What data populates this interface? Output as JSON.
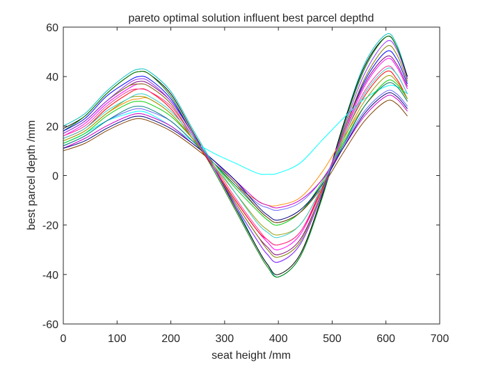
{
  "chart_data": {
    "type": "line",
    "title": "pareto optimal solution influent best parcel depthd",
    "xlabel": "seat height  /mm",
    "ylabel": "best parcel depth  /mm",
    "xlim": [
      0,
      700
    ],
    "ylim": [
      -60,
      60
    ],
    "xticks": [
      "0",
      "100",
      "200",
      "300",
      "400",
      "500",
      "600",
      "700"
    ],
    "yticks": [
      "-60",
      "-40",
      "-20",
      "0",
      "20",
      "40",
      "60"
    ],
    "grid": false,
    "legend": "none",
    "x": [
      0,
      40,
      80,
      120,
      140,
      160,
      200,
      240,
      280,
      320,
      360,
      380,
      400,
      440,
      480,
      520,
      560,
      600,
      620,
      640
    ],
    "series": [
      {
        "color": "#00bfbf",
        "values": [
          20,
          25,
          34,
          41,
          43,
          42,
          34,
          19,
          4,
          -12,
          -29,
          -36,
          -41,
          -33,
          -10,
          20,
          45,
          57,
          53,
          40
        ]
      },
      {
        "color": "#000000",
        "values": [
          19,
          24,
          33,
          40,
          42,
          41,
          33,
          18,
          3,
          -13,
          -29,
          -36,
          -40,
          -32,
          -9,
          20,
          44,
          56,
          52,
          40
        ]
      },
      {
        "color": "#008000",
        "values": [
          18,
          24,
          33,
          40,
          42,
          41,
          32,
          17,
          2,
          -14,
          -30,
          -37,
          -41,
          -33,
          -10,
          19,
          43,
          56,
          52,
          39
        ]
      },
      {
        "color": "#0000ff",
        "values": [
          18,
          23,
          32,
          38,
          40,
          39,
          31,
          17,
          3,
          -12,
          -26,
          -32,
          -35,
          -28,
          -8,
          17,
          38,
          50,
          47,
          37
        ]
      },
      {
        "color": "#800080",
        "values": [
          17,
          22,
          30,
          36,
          38,
          37,
          30,
          17,
          3,
          -11,
          -24,
          -29,
          -32,
          -26,
          -7,
          17,
          37,
          48,
          45,
          36
        ]
      },
      {
        "color": "#ff00ff",
        "values": [
          16,
          21,
          29,
          35,
          37,
          36,
          29,
          16,
          3,
          -10,
          -22,
          -27,
          -30,
          -24,
          -6,
          16,
          36,
          47,
          44,
          35
        ]
      },
      {
        "color": "#808000",
        "values": [
          17,
          22,
          30,
          36,
          37,
          36,
          29,
          16,
          3,
          -11,
          -24,
          -30,
          -33,
          -27,
          -7,
          17,
          39,
          52,
          49,
          38
        ]
      },
      {
        "color": "#ff0000",
        "values": [
          15,
          19,
          27,
          33,
          35,
          34,
          27,
          15,
          3,
          -10,
          -22,
          -26,
          -28,
          -23,
          -6,
          15,
          32,
          42,
          39,
          31
        ]
      },
      {
        "color": "#ff8c00",
        "values": [
          14,
          18,
          25,
          30,
          31,
          31,
          25,
          15,
          5,
          -4,
          -10,
          -12,
          -12,
          -9,
          1,
          15,
          28,
          37,
          36,
          30
        ]
      },
      {
        "color": "#00ffff",
        "values": [
          13,
          17,
          22,
          25,
          26,
          25,
          20,
          14,
          9,
          5,
          1,
          0.5,
          1,
          5,
          14,
          23,
          31,
          36,
          36,
          33
        ]
      },
      {
        "color": "#00cc00",
        "values": [
          13,
          17,
          24,
          29,
          30,
          29,
          24,
          15,
          5,
          -5,
          -14,
          -18,
          -20,
          -15,
          -3,
          13,
          28,
          38,
          37,
          31
        ]
      },
      {
        "color": "#6666ff",
        "values": [
          12,
          16,
          22,
          26,
          27,
          26,
          22,
          14,
          6,
          -3,
          -11,
          -13,
          -14,
          -11,
          -2,
          12,
          26,
          34,
          33,
          28
        ]
      },
      {
        "color": "#008080",
        "values": [
          12,
          16,
          22,
          27,
          28,
          27,
          22,
          14,
          5,
          -4,
          -13,
          -17,
          -19,
          -15,
          -4,
          12,
          28,
          37,
          36,
          30
        ]
      },
      {
        "color": "#cc00cc",
        "values": [
          11,
          15,
          20,
          24,
          25,
          24,
          20,
          13,
          6,
          -2,
          -10,
          -12,
          -13,
          -10,
          -2,
          11,
          24,
          32,
          31,
          26
        ]
      },
      {
        "color": "#000080",
        "values": [
          11,
          14,
          19,
          23,
          24,
          23,
          19,
          13,
          6,
          -2,
          -12,
          -16,
          -18,
          -14,
          -4,
          11,
          25,
          33,
          32,
          27
        ]
      },
      {
        "color": "#804000",
        "values": [
          10,
          13,
          18,
          22,
          23,
          22,
          18,
          12,
          5,
          -3,
          -13,
          -17,
          -19,
          -15,
          -5,
          9,
          22,
          30,
          29,
          24
        ]
      },
      {
        "color": "#ff3399",
        "values": [
          16,
          20,
          28,
          34,
          35,
          34,
          28,
          16,
          4,
          -9,
          -21,
          -26,
          -28,
          -23,
          -5,
          16,
          34,
          44,
          41,
          33
        ]
      },
      {
        "color": "#999900",
        "values": [
          14,
          18,
          25,
          31,
          32,
          31,
          25,
          15,
          4,
          -7,
          -18,
          -22,
          -24,
          -20,
          -5,
          14,
          30,
          40,
          38,
          31
        ]
      },
      {
        "color": "#33cccc",
        "values": [
          15,
          19,
          26,
          31,
          33,
          32,
          26,
          16,
          5,
          -7,
          -19,
          -23,
          -25,
          -20,
          -5,
          15,
          33,
          43,
          41,
          33
        ]
      },
      {
        "color": "#9933ff",
        "values": [
          17,
          22,
          30,
          37,
          39,
          38,
          30,
          17,
          3,
          -12,
          -26,
          -32,
          -35,
          -28,
          -8,
          18,
          41,
          54,
          51,
          39
        ]
      }
    ]
  }
}
